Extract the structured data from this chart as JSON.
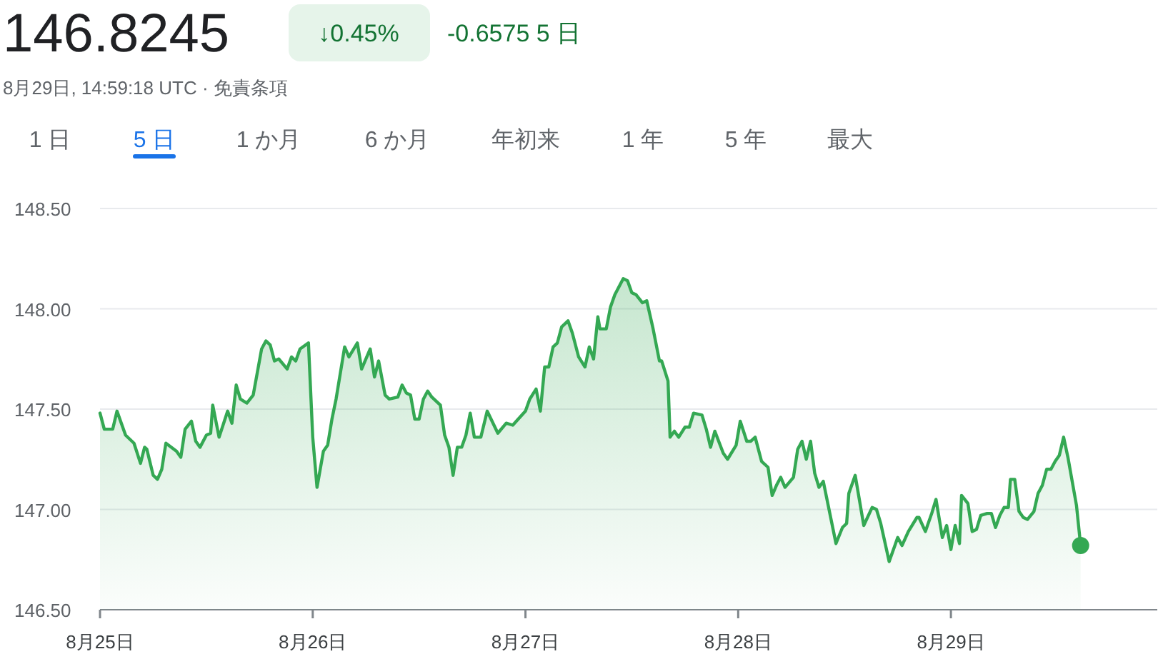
{
  "chart_data": {
    "type": "area",
    "title": "146.8245",
    "subtitle": "8月29日, 14:59:18 UTC · 免責条項",
    "annotations": [
      "↓0.45%",
      "-0.6575 5 日",
      "1 日",
      "5 日",
      "1 か月",
      "6 か月",
      "年初来",
      "1 年",
      "5 年",
      "最大"
    ],
    "xlim": [
      "--08-25T00:00",
      "--08-29T23:17"
    ],
    "xticks": [
      {
        "value": "--08-25",
        "label": "8月25日"
      },
      {
        "value": "--08-26",
        "label": "8月26日"
      },
      {
        "value": "--08-27",
        "label": "8月27日"
      },
      {
        "value": "--08-28",
        "label": "8月28日"
      },
      {
        "value": "--08-29",
        "label": "8月29日"
      }
    ],
    "ylim": [
      146.5,
      148.5
    ],
    "yticks": [
      {
        "value": 146.5,
        "label": "146.50"
      },
      {
        "value": 147,
        "label": "147.00"
      },
      {
        "value": 147.5,
        "label": "147.50"
      },
      {
        "value": 148,
        "label": "148.00"
      },
      {
        "value": 148.5,
        "label": "148.50"
      }
    ],
    "grid": "y",
    "series": [
      {
        "color": "#34a853",
        "x": [
          "--08-25T00:00",
          "--08-25T00:29",
          "--08-25T01:26",
          "--08-25T01:55",
          "--08-25T02:53",
          "--08-25T03:50",
          "--08-25T04:34",
          "--08-25T05:02",
          "--08-25T05:17",
          "--08-25T06:00",
          "--08-25T06:29",
          "--08-25T06:58",
          "--08-25T07:26",
          "--08-25T08:38",
          "--08-25T09:07",
          "--08-25T09:36",
          "--08-25T10:19",
          "--08-25T10:48",
          "--08-25T11:17",
          "--08-25T12:00",
          "--08-25T12:29",
          "--08-25T12:43",
          "--08-25T13:26",
          "--08-25T14:24",
          "--08-25T14:53",
          "--08-25T15:22",
          "--08-25T15:50",
          "--08-25T16:34",
          "--08-25T17:17",
          "--08-25T18:14",
          "--08-25T18:43",
          "--08-25T19:12",
          "--08-25T19:41",
          "--08-25T20:10",
          "--08-25T21:07",
          "--08-25T21:36",
          "--08-25T22:05",
          "--08-25T22:34",
          "--08-25T23:31",
          "--08-26T00:00",
          "--08-26T00:29",
          "--08-26T01:12",
          "--08-26T01:41",
          "--08-26T02:10",
          "--08-26T02:38",
          "--08-26T03:36",
          "--08-26T04:05",
          "--08-26T05:02",
          "--08-26T05:31",
          "--08-26T06:29",
          "--08-26T06:58",
          "--08-26T07:26",
          "--08-26T08:10",
          "--08-26T08:38",
          "--08-26T09:36",
          "--08-26T10:05",
          "--08-26T10:34",
          "--08-26T11:02",
          "--08-26T11:31",
          "--08-26T12:00",
          "--08-26T12:29",
          "--08-26T12:58",
          "--08-26T13:26",
          "--08-26T14:24",
          "--08-26T14:53",
          "--08-26T15:22",
          "--08-26T15:50",
          "--08-26T16:19",
          "--08-26T16:48",
          "--08-26T17:17",
          "--08-26T17:46",
          "--08-26T18:14",
          "--08-26T18:58",
          "--08-26T19:41",
          "--08-26T20:53",
          "--08-26T21:50",
          "--08-26T22:34",
          "--08-27T00:00",
          "--08-27T00:29",
          "--08-27T01:12",
          "--08-27T01:41",
          "--08-27T02:10",
          "--08-27T02:38",
          "--08-27T03:07",
          "--08-27T03:36",
          "--08-27T04:05",
          "--08-27T04:48",
          "--08-27T05:17",
          "--08-27T06:00",
          "--08-27T06:43",
          "--08-27T07:12",
          "--08-27T07:41",
          "--08-27T08:10",
          "--08-27T08:24",
          "--08-27T09:07",
          "--08-27T09:36",
          "--08-27T10:05",
          "--08-27T11:02",
          "--08-27T11:31",
          "--08-27T12:00",
          "--08-27T12:29",
          "--08-27T13:12",
          "--08-27T13:41",
          "--08-27T14:24",
          "--08-27T15:07",
          "--08-27T15:22",
          "--08-27T16:05",
          "--08-27T16:19",
          "--08-27T16:48",
          "--08-27T17:17",
          "--08-27T18:00",
          "--08-27T18:29",
          "--08-27T18:58",
          "--08-27T19:55",
          "--08-27T20:24",
          "--08-27T20:53",
          "--08-27T21:22",
          "--08-27T22:19",
          "--08-27T22:48",
          "--08-27T23:46",
          "--08-28T00:14",
          "--08-28T00:58",
          "--08-28T01:26",
          "--08-28T01:55",
          "--08-28T02:38",
          "--08-28T03:22",
          "--08-28T03:50",
          "--08-28T04:19",
          "--08-28T04:48",
          "--08-28T05:17",
          "--08-28T06:14",
          "--08-28T06:43",
          "--08-28T07:12",
          "--08-28T07:41",
          "--08-28T08:10",
          "--08-28T08:38",
          "--08-28T09:07",
          "--08-28T09:36",
          "--08-28T11:02",
          "--08-28T11:46",
          "--08-28T12:14",
          "--08-28T12:29",
          "--08-28T13:12",
          "--08-28T14:10",
          "--08-28T15:07",
          "--08-28T15:36",
          "--08-28T16:05",
          "--08-28T17:02",
          "--08-28T18:00",
          "--08-28T18:29",
          "--08-28T19:12",
          "--08-28T20:10",
          "--08-28T20:24",
          "--08-28T21:07",
          "--08-28T21:50",
          "--08-28T22:19",
          "--08-28T23:02",
          "--08-28T23:31",
          "--08-29T00:00",
          "--08-29T00:29",
          "--08-29T00:58",
          "--08-29T01:12",
          "--08-29T01:55",
          "--08-29T02:24",
          "--08-29T02:53",
          "--08-29T03:22",
          "--08-29T04:05",
          "--08-29T04:34",
          "--08-29T05:02",
          "--08-29T05:31",
          "--08-29T06:00",
          "--08-29T06:29",
          "--08-29T06:43",
          "--08-29T07:12",
          "--08-29T07:41",
          "--08-29T08:10",
          "--08-29T08:38",
          "--08-29T09:22",
          "--08-29T09:50",
          "--08-29T10:19",
          "--08-29T10:48",
          "--08-29T11:17",
          "--08-29T11:46",
          "--08-29T12:14",
          "--08-29T12:43",
          "--08-29T13:12",
          "--08-29T14:10",
          "--08-29T14:38"
        ],
        "values": [
          147.48,
          147.4,
          147.4,
          147.49,
          147.37,
          147.33,
          147.23,
          147.31,
          147.3,
          147.17,
          147.15,
          147.2,
          147.33,
          147.29,
          147.26,
          147.4,
          147.44,
          147.34,
          147.31,
          147.37,
          147.38,
          147.52,
          147.36,
          147.49,
          147.43,
          147.62,
          147.55,
          147.53,
          147.57,
          147.8,
          147.84,
          147.82,
          147.74,
          147.75,
          147.7,
          147.76,
          147.74,
          147.8,
          147.83,
          147.36,
          147.11,
          147.29,
          147.32,
          147.45,
          147.55,
          147.81,
          147.76,
          147.83,
          147.7,
          147.8,
          147.66,
          147.74,
          147.57,
          147.55,
          147.56,
          147.62,
          147.58,
          147.57,
          147.45,
          147.45,
          147.55,
          147.59,
          147.56,
          147.52,
          147.37,
          147.31,
          147.17,
          147.31,
          147.31,
          147.37,
          147.48,
          147.36,
          147.36,
          147.49,
          147.38,
          147.43,
          147.42,
          147.49,
          147.55,
          147.6,
          147.49,
          147.71,
          147.71,
          147.81,
          147.83,
          147.91,
          147.94,
          147.88,
          147.76,
          147.71,
          147.81,
          147.75,
          147.96,
          147.9,
          147.9,
          148.01,
          148.07,
          148.15,
          148.14,
          148.08,
          148.07,
          148.03,
          148.04,
          147.9,
          147.74,
          147.74,
          147.64,
          147.36,
          147.39,
          147.36,
          147.41,
          147.41,
          147.48,
          147.47,
          147.4,
          147.31,
          147.39,
          147.28,
          147.25,
          147.32,
          147.44,
          147.34,
          147.34,
          147.36,
          147.24,
          147.21,
          147.07,
          147.12,
          147.16,
          147.11,
          147.16,
          147.3,
          147.34,
          147.25,
          147.34,
          147.18,
          147.11,
          147.14,
          146.83,
          146.91,
          146.93,
          147.08,
          147.17,
          146.92,
          147.01,
          147.0,
          146.93,
          146.74,
          146.86,
          146.82,
          146.89,
          146.96,
          146.96,
          146.89,
          146.98,
          147.05,
          146.86,
          146.92,
          146.8,
          146.92,
          146.83,
          147.07,
          147.03,
          146.89,
          146.9,
          146.97,
          146.98,
          146.98,
          146.91,
          146.97,
          147.01,
          147.01,
          147.15,
          147.15,
          146.99,
          146.96,
          146.95,
          146.99,
          147.08,
          147.12,
          147.2,
          147.2,
          147.24,
          147.27,
          147.36,
          147.26,
          147.02,
          146.82
        ]
      }
    ]
  }
}
